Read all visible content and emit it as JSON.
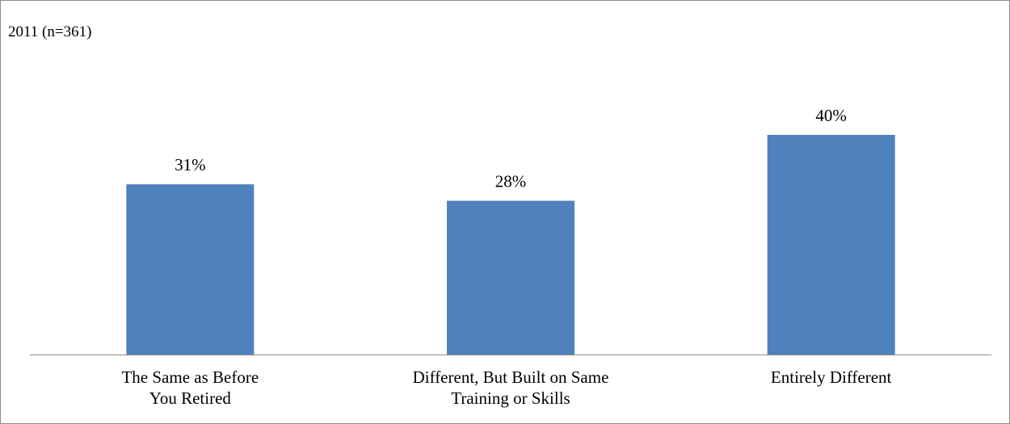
{
  "chart_data": {
    "type": "bar",
    "title": "2011 (n=361)",
    "categories": [
      [
        "The Same as Before",
        "You Retired"
      ],
      [
        "Different, But Built on Same",
        "Training or Skills"
      ],
      [
        "Entirely Different"
      ]
    ],
    "values": [
      31,
      28,
      40
    ],
    "value_labels": [
      "31%",
      "28%",
      "40%"
    ],
    "xlabel": "",
    "ylabel": "",
    "ylim": [
      0,
      50
    ],
    "grid": false,
    "legend": "none",
    "bar_color": "#4F81BD",
    "axis_color": "#8C8C8C"
  }
}
